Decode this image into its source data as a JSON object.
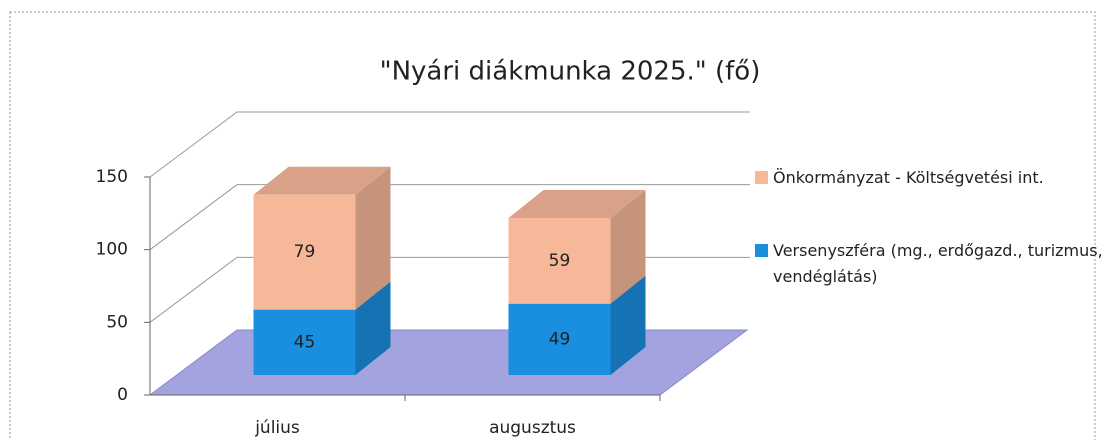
{
  "chart_data": {
    "type": "bar3d_stacked",
    "title": "\"Nyári diákmunka 2025.\" (fő)",
    "categories": [
      "július",
      "augusztus"
    ],
    "series": [
      {
        "name": "Versenyszféra (mg., erdőgazd., turizmus, vendéglátás)",
        "color": "#1a8fe0",
        "values": [
          45,
          49
        ]
      },
      {
        "name": "Önkormányzat - Költségvetési int.",
        "color": "#f7b89a",
        "values": [
          79,
          59
        ]
      }
    ],
    "ylim": [
      0,
      150
    ],
    "yticks": [
      0,
      50,
      100,
      150
    ],
    "grid": true,
    "legend": "right"
  }
}
